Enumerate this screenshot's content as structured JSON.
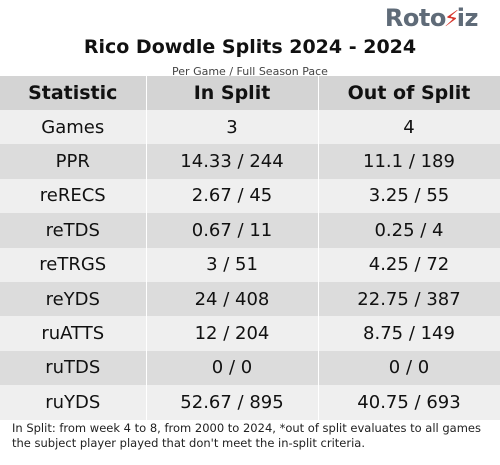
{
  "brand": {
    "logo_prefix": "Roto",
    "logo_suffix": "iz",
    "logo_mark": "⚡"
  },
  "title": "Rico Dowdle Splits 2024 - 2024",
  "subtitle": "Per Game / Full Season Pace",
  "table": {
    "headers": [
      "Statistic",
      "In Split",
      "Out of Split"
    ],
    "rows": [
      {
        "stat": "Games",
        "in_split": "3",
        "out_split": "4"
      },
      {
        "stat": "PPR",
        "in_split": "14.33 / 244",
        "out_split": "11.1 / 189"
      },
      {
        "stat": "reRECS",
        "in_split": "2.67 / 45",
        "out_split": "3.25 / 55"
      },
      {
        "stat": "reTDS",
        "in_split": "0.67 / 11",
        "out_split": "0.25 / 4"
      },
      {
        "stat": "reTRGS",
        "in_split": "3 / 51",
        "out_split": "4.25 / 72"
      },
      {
        "stat": "reYDS",
        "in_split": "24 / 408",
        "out_split": "22.75 / 387"
      },
      {
        "stat": "ruATTS",
        "in_split": "12 / 204",
        "out_split": "8.75 / 149"
      },
      {
        "stat": "ruTDS",
        "in_split": "0 / 0",
        "out_split": "0 / 0"
      },
      {
        "stat": "ruYDS",
        "in_split": "52.67 / 895",
        "out_split": "40.75 / 693"
      }
    ]
  },
  "footnote": "In Split: from week 4 to 8, from 2000 to 2024,  *out of split evaluates to all games the subject player played that don't meet the in-split criteria."
}
